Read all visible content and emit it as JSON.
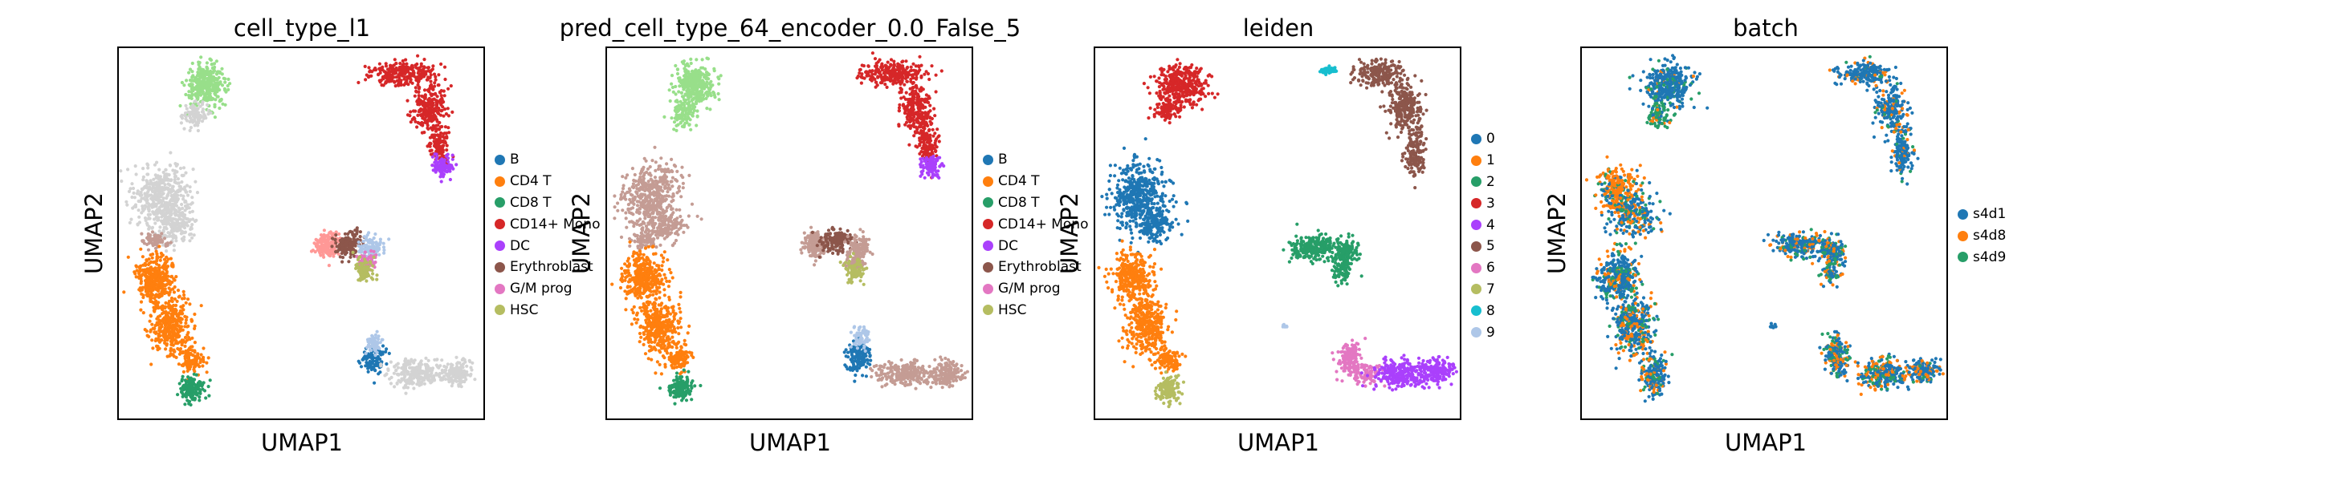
{
  "figure": {
    "xlabel": "UMAP1",
    "ylabel": "UMAP2"
  },
  "chart_data": [
    {
      "type": "scatter",
      "title": "cell_type_l1",
      "xlabel": "UMAP1",
      "ylabel": "UMAP2",
      "legend_position": "right",
      "legend": [
        {
          "name": "B",
          "color": "#1f77b4"
        },
        {
          "name": "CD4 T",
          "color": "#ff7f0e"
        },
        {
          "name": "CD8 T",
          "color": "#279e68"
        },
        {
          "name": "CD14+ Mono",
          "color": "#d62728"
        },
        {
          "name": "DC",
          "color": "#aa40fc"
        },
        {
          "name": "Erythroblast",
          "color": "#8c564b"
        },
        {
          "name": "G/M prog",
          "color": "#e377c2"
        },
        {
          "name": "HSC",
          "color": "#b5bd61"
        }
      ],
      "extra_colors": {
        "unlabeled": "#d3d3d3",
        "light_green": "#98df8a",
        "light_blue": "#aec7e8",
        "salmon": "#ff9896",
        "pink_brown": "#c49c94"
      },
      "clusters": [
        {
          "cx": 0.24,
          "cy": 0.9,
          "rx": 0.05,
          "ry": 0.05,
          "n": 350,
          "color": "#98df8a"
        },
        {
          "cx": 0.21,
          "cy": 0.82,
          "rx": 0.03,
          "ry": 0.03,
          "n": 90,
          "color": "#d3d3d3"
        },
        {
          "cx": 0.12,
          "cy": 0.6,
          "rx": 0.07,
          "ry": 0.08,
          "n": 450,
          "color": "#d3d3d3"
        },
        {
          "cx": 0.16,
          "cy": 0.52,
          "rx": 0.05,
          "ry": 0.04,
          "n": 150,
          "color": "#d3d3d3"
        },
        {
          "cx": 0.1,
          "cy": 0.48,
          "rx": 0.03,
          "ry": 0.02,
          "n": 60,
          "color": "#c49c94"
        },
        {
          "cx": 0.1,
          "cy": 0.38,
          "rx": 0.05,
          "ry": 0.06,
          "n": 350,
          "color": "#ff7f0e"
        },
        {
          "cx": 0.14,
          "cy": 0.25,
          "rx": 0.05,
          "ry": 0.07,
          "n": 350,
          "color": "#ff7f0e"
        },
        {
          "cx": 0.2,
          "cy": 0.16,
          "rx": 0.03,
          "ry": 0.03,
          "n": 100,
          "color": "#ff7f0e"
        },
        {
          "cx": 0.2,
          "cy": 0.08,
          "rx": 0.03,
          "ry": 0.03,
          "n": 150,
          "color": "#279e68"
        },
        {
          "cx": 0.78,
          "cy": 0.93,
          "rx": 0.08,
          "ry": 0.03,
          "n": 250,
          "color": "#d62728"
        },
        {
          "cx": 0.85,
          "cy": 0.84,
          "rx": 0.04,
          "ry": 0.06,
          "n": 250,
          "color": "#d62728"
        },
        {
          "cx": 0.88,
          "cy": 0.74,
          "rx": 0.025,
          "ry": 0.05,
          "n": 120,
          "color": "#d62728"
        },
        {
          "cx": 0.89,
          "cy": 0.68,
          "rx": 0.025,
          "ry": 0.025,
          "n": 100,
          "color": "#aa40fc"
        },
        {
          "cx": 0.57,
          "cy": 0.47,
          "rx": 0.03,
          "ry": 0.03,
          "n": 150,
          "color": "#ff9896"
        },
        {
          "cx": 0.63,
          "cy": 0.47,
          "rx": 0.04,
          "ry": 0.03,
          "n": 150,
          "color": "#8c564b"
        },
        {
          "cx": 0.69,
          "cy": 0.46,
          "rx": 0.03,
          "ry": 0.03,
          "n": 100,
          "color": "#aec7e8"
        },
        {
          "cx": 0.68,
          "cy": 0.42,
          "rx": 0.025,
          "ry": 0.02,
          "n": 80,
          "color": "#e377c2"
        },
        {
          "cx": 0.67,
          "cy": 0.4,
          "rx": 0.025,
          "ry": 0.03,
          "n": 80,
          "color": "#b5bd61"
        },
        {
          "cx": 0.7,
          "cy": 0.16,
          "rx": 0.03,
          "ry": 0.03,
          "n": 120,
          "color": "#1f77b4"
        },
        {
          "cx": 0.7,
          "cy": 0.2,
          "rx": 0.02,
          "ry": 0.03,
          "n": 60,
          "color": "#aec7e8"
        },
        {
          "cx": 0.82,
          "cy": 0.12,
          "rx": 0.07,
          "ry": 0.03,
          "n": 250,
          "color": "#d3d3d3"
        },
        {
          "cx": 0.93,
          "cy": 0.12,
          "rx": 0.04,
          "ry": 0.03,
          "n": 150,
          "color": "#d3d3d3"
        }
      ]
    },
    {
      "type": "scatter",
      "title": "pred_cell_type_64_encoder_0.0_False_5",
      "xlabel": "UMAP1",
      "ylabel": "UMAP2",
      "legend_position": "right",
      "legend": [
        {
          "name": "B",
          "color": "#1f77b4"
        },
        {
          "name": "CD4 T",
          "color": "#ff7f0e"
        },
        {
          "name": "CD8 T",
          "color": "#279e68"
        },
        {
          "name": "CD14+ Mono",
          "color": "#d62728"
        },
        {
          "name": "DC",
          "color": "#aa40fc"
        },
        {
          "name": "Erythroblast",
          "color": "#8c564b"
        },
        {
          "name": "G/M prog",
          "color": "#e377c2"
        },
        {
          "name": "HSC",
          "color": "#b5bd61"
        }
      ],
      "clusters": [
        {
          "cx": 0.24,
          "cy": 0.9,
          "rx": 0.05,
          "ry": 0.05,
          "n": 350,
          "color": "#98df8a"
        },
        {
          "cx": 0.21,
          "cy": 0.82,
          "rx": 0.03,
          "ry": 0.03,
          "n": 90,
          "color": "#98df8a"
        },
        {
          "cx": 0.12,
          "cy": 0.6,
          "rx": 0.07,
          "ry": 0.08,
          "n": 450,
          "color": "#c49c94"
        },
        {
          "cx": 0.16,
          "cy": 0.52,
          "rx": 0.05,
          "ry": 0.04,
          "n": 150,
          "color": "#c49c94"
        },
        {
          "cx": 0.1,
          "cy": 0.48,
          "rx": 0.03,
          "ry": 0.02,
          "n": 60,
          "color": "#c49c94"
        },
        {
          "cx": 0.1,
          "cy": 0.38,
          "rx": 0.05,
          "ry": 0.06,
          "n": 350,
          "color": "#ff7f0e"
        },
        {
          "cx": 0.14,
          "cy": 0.25,
          "rx": 0.05,
          "ry": 0.07,
          "n": 350,
          "color": "#ff7f0e"
        },
        {
          "cx": 0.2,
          "cy": 0.16,
          "rx": 0.03,
          "ry": 0.03,
          "n": 100,
          "color": "#ff7f0e"
        },
        {
          "cx": 0.2,
          "cy": 0.08,
          "rx": 0.03,
          "ry": 0.03,
          "n": 150,
          "color": "#279e68"
        },
        {
          "cx": 0.78,
          "cy": 0.93,
          "rx": 0.08,
          "ry": 0.03,
          "n": 250,
          "color": "#d62728"
        },
        {
          "cx": 0.85,
          "cy": 0.84,
          "rx": 0.04,
          "ry": 0.06,
          "n": 250,
          "color": "#d62728"
        },
        {
          "cx": 0.88,
          "cy": 0.74,
          "rx": 0.025,
          "ry": 0.05,
          "n": 120,
          "color": "#d62728"
        },
        {
          "cx": 0.89,
          "cy": 0.68,
          "rx": 0.025,
          "ry": 0.025,
          "n": 100,
          "color": "#aa40fc"
        },
        {
          "cx": 0.57,
          "cy": 0.47,
          "rx": 0.03,
          "ry": 0.03,
          "n": 150,
          "color": "#c49c94"
        },
        {
          "cx": 0.63,
          "cy": 0.48,
          "rx": 0.04,
          "ry": 0.03,
          "n": 150,
          "color": "#8c564b"
        },
        {
          "cx": 0.69,
          "cy": 0.46,
          "rx": 0.03,
          "ry": 0.03,
          "n": 100,
          "color": "#c49c94"
        },
        {
          "cx": 0.68,
          "cy": 0.42,
          "rx": 0.025,
          "ry": 0.02,
          "n": 80,
          "color": "#c49c94"
        },
        {
          "cx": 0.68,
          "cy": 0.4,
          "rx": 0.025,
          "ry": 0.03,
          "n": 80,
          "color": "#b5bd61"
        },
        {
          "cx": 0.69,
          "cy": 0.17,
          "rx": 0.03,
          "ry": 0.04,
          "n": 150,
          "color": "#1f77b4"
        },
        {
          "cx": 0.7,
          "cy": 0.22,
          "rx": 0.02,
          "ry": 0.03,
          "n": 60,
          "color": "#aec7e8"
        },
        {
          "cx": 0.82,
          "cy": 0.12,
          "rx": 0.07,
          "ry": 0.03,
          "n": 250,
          "color": "#c49c94"
        },
        {
          "cx": 0.93,
          "cy": 0.12,
          "rx": 0.04,
          "ry": 0.03,
          "n": 150,
          "color": "#c49c94"
        }
      ]
    },
    {
      "type": "scatter",
      "title": "leiden",
      "xlabel": "UMAP1",
      "ylabel": "UMAP2",
      "legend_position": "right",
      "legend": [
        {
          "name": "0",
          "color": "#1f77b4"
        },
        {
          "name": "1",
          "color": "#ff7f0e"
        },
        {
          "name": "2",
          "color": "#279e68"
        },
        {
          "name": "3",
          "color": "#d62728"
        },
        {
          "name": "4",
          "color": "#aa40fc"
        },
        {
          "name": "5",
          "color": "#8c564b"
        },
        {
          "name": "6",
          "color": "#e377c2"
        },
        {
          "name": "7",
          "color": "#b5bd61"
        },
        {
          "name": "8",
          "color": "#17becf"
        },
        {
          "name": "9",
          "color": "#aec7e8"
        }
      ],
      "clusters": [
        {
          "cx": 0.24,
          "cy": 0.9,
          "rx": 0.06,
          "ry": 0.05,
          "n": 350,
          "color": "#d62728"
        },
        {
          "cx": 0.2,
          "cy": 0.83,
          "rx": 0.03,
          "ry": 0.03,
          "n": 90,
          "color": "#d62728"
        },
        {
          "cx": 0.12,
          "cy": 0.6,
          "rx": 0.07,
          "ry": 0.08,
          "n": 450,
          "color": "#1f77b4"
        },
        {
          "cx": 0.16,
          "cy": 0.52,
          "rx": 0.05,
          "ry": 0.04,
          "n": 150,
          "color": "#1f77b4"
        },
        {
          "cx": 0.1,
          "cy": 0.38,
          "rx": 0.05,
          "ry": 0.06,
          "n": 350,
          "color": "#ff7f0e"
        },
        {
          "cx": 0.14,
          "cy": 0.25,
          "rx": 0.05,
          "ry": 0.07,
          "n": 350,
          "color": "#ff7f0e"
        },
        {
          "cx": 0.2,
          "cy": 0.16,
          "rx": 0.03,
          "ry": 0.03,
          "n": 100,
          "color": "#ff7f0e"
        },
        {
          "cx": 0.2,
          "cy": 0.08,
          "rx": 0.03,
          "ry": 0.03,
          "n": 150,
          "color": "#b5bd61"
        },
        {
          "cx": 0.64,
          "cy": 0.94,
          "rx": 0.02,
          "ry": 0.01,
          "n": 50,
          "color": "#17becf"
        },
        {
          "cx": 0.78,
          "cy": 0.93,
          "rx": 0.06,
          "ry": 0.03,
          "n": 200,
          "color": "#8c564b"
        },
        {
          "cx": 0.85,
          "cy": 0.84,
          "rx": 0.04,
          "ry": 0.06,
          "n": 250,
          "color": "#8c564b"
        },
        {
          "cx": 0.88,
          "cy": 0.72,
          "rx": 0.025,
          "ry": 0.06,
          "n": 150,
          "color": "#8c564b"
        },
        {
          "cx": 0.6,
          "cy": 0.46,
          "rx": 0.06,
          "ry": 0.03,
          "n": 250,
          "color": "#279e68"
        },
        {
          "cx": 0.69,
          "cy": 0.45,
          "rx": 0.03,
          "ry": 0.03,
          "n": 120,
          "color": "#279e68"
        },
        {
          "cx": 0.68,
          "cy": 0.4,
          "rx": 0.025,
          "ry": 0.03,
          "n": 80,
          "color": "#279e68"
        },
        {
          "cx": 0.7,
          "cy": 0.16,
          "rx": 0.03,
          "ry": 0.04,
          "n": 150,
          "color": "#e377c2"
        },
        {
          "cx": 0.75,
          "cy": 0.12,
          "rx": 0.03,
          "ry": 0.03,
          "n": 80,
          "color": "#e377c2"
        },
        {
          "cx": 0.84,
          "cy": 0.12,
          "rx": 0.07,
          "ry": 0.035,
          "n": 280,
          "color": "#aa40fc"
        },
        {
          "cx": 0.94,
          "cy": 0.13,
          "rx": 0.04,
          "ry": 0.03,
          "n": 150,
          "color": "#aa40fc"
        },
        {
          "cx": 0.52,
          "cy": 0.25,
          "rx": 0.01,
          "ry": 0.005,
          "n": 8,
          "color": "#aec7e8"
        }
      ]
    },
    {
      "type": "scatter",
      "title": "batch",
      "xlabel": "UMAP1",
      "ylabel": "UMAP2",
      "legend_position": "right",
      "legend": [
        {
          "name": "s4d1",
          "color": "#1f77b4"
        },
        {
          "name": "s4d8",
          "color": "#ff7f0e"
        },
        {
          "name": "s4d9",
          "color": "#279e68"
        }
      ],
      "clusters": [
        {
          "cx": 0.24,
          "cy": 0.9,
          "rx": 0.06,
          "ry": 0.05,
          "n": 350,
          "mix": [
            0.8,
            0.05,
            0.15
          ]
        },
        {
          "cx": 0.21,
          "cy": 0.82,
          "rx": 0.03,
          "ry": 0.03,
          "n": 90,
          "mix": [
            0.1,
            0.1,
            0.8
          ]
        },
        {
          "cx": 0.1,
          "cy": 0.62,
          "rx": 0.05,
          "ry": 0.05,
          "n": 250,
          "mix": [
            0.2,
            0.65,
            0.15
          ]
        },
        {
          "cx": 0.14,
          "cy": 0.55,
          "rx": 0.06,
          "ry": 0.05,
          "n": 250,
          "mix": [
            0.55,
            0.25,
            0.2
          ]
        },
        {
          "cx": 0.1,
          "cy": 0.38,
          "rx": 0.05,
          "ry": 0.06,
          "n": 350,
          "mix": [
            0.6,
            0.2,
            0.2
          ]
        },
        {
          "cx": 0.14,
          "cy": 0.25,
          "rx": 0.05,
          "ry": 0.07,
          "n": 350,
          "mix": [
            0.6,
            0.2,
            0.2
          ]
        },
        {
          "cx": 0.2,
          "cy": 0.12,
          "rx": 0.03,
          "ry": 0.05,
          "n": 200,
          "mix": [
            0.55,
            0.25,
            0.2
          ]
        },
        {
          "cx": 0.78,
          "cy": 0.93,
          "rx": 0.06,
          "ry": 0.03,
          "n": 200,
          "mix": [
            0.8,
            0.12,
            0.08
          ]
        },
        {
          "cx": 0.85,
          "cy": 0.84,
          "rx": 0.04,
          "ry": 0.06,
          "n": 200,
          "mix": [
            0.8,
            0.12,
            0.08
          ]
        },
        {
          "cx": 0.88,
          "cy": 0.72,
          "rx": 0.025,
          "ry": 0.06,
          "n": 150,
          "mix": [
            0.85,
            0.1,
            0.05
          ]
        },
        {
          "cx": 0.6,
          "cy": 0.47,
          "rx": 0.06,
          "ry": 0.03,
          "n": 250,
          "mix": [
            0.6,
            0.2,
            0.2
          ]
        },
        {
          "cx": 0.69,
          "cy": 0.45,
          "rx": 0.03,
          "ry": 0.03,
          "n": 120,
          "mix": [
            0.6,
            0.2,
            0.2
          ]
        },
        {
          "cx": 0.68,
          "cy": 0.4,
          "rx": 0.025,
          "ry": 0.03,
          "n": 80,
          "mix": [
            0.5,
            0.2,
            0.3
          ]
        },
        {
          "cx": 0.7,
          "cy": 0.17,
          "rx": 0.03,
          "ry": 0.05,
          "n": 200,
          "mix": [
            0.5,
            0.3,
            0.2
          ]
        },
        {
          "cx": 0.83,
          "cy": 0.12,
          "rx": 0.07,
          "ry": 0.035,
          "n": 280,
          "mix": [
            0.5,
            0.3,
            0.2
          ]
        },
        {
          "cx": 0.94,
          "cy": 0.13,
          "rx": 0.04,
          "ry": 0.03,
          "n": 150,
          "mix": [
            0.7,
            0.15,
            0.15
          ]
        },
        {
          "cx": 0.52,
          "cy": 0.25,
          "rx": 0.01,
          "ry": 0.005,
          "n": 8,
          "mix": [
            1,
            0,
            0
          ]
        }
      ]
    }
  ]
}
